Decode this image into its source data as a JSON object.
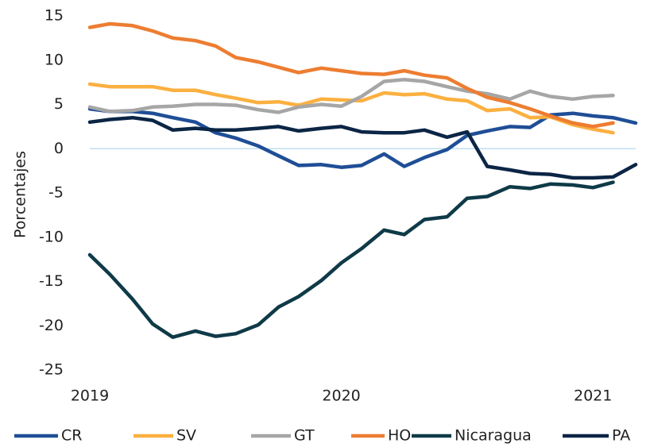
{
  "chart_data": {
    "type": "line",
    "ylabel": "Porcentajes",
    "x": [
      2019,
      2019.08,
      2019.17,
      2019.25,
      2019.33,
      2019.42,
      2019.5,
      2019.58,
      2019.67,
      2019.75,
      2019.83,
      2019.92,
      2020,
      2020.08,
      2020.17,
      2020.25,
      2020.33,
      2020.42,
      2020.5,
      2020.58,
      2020.67,
      2020.75,
      2020.83,
      2020.92,
      2021,
      2021.08,
      2021.17
    ],
    "xlim": [
      2019,
      2021.17
    ],
    "xticks": [
      2019,
      2020,
      2021
    ],
    "ylim": [
      -25,
      15
    ],
    "yticks": [
      -25,
      -20,
      -15,
      -10,
      -5,
      0,
      5,
      10,
      15
    ],
    "zero_line": true,
    "legend": "bottom",
    "series": [
      {
        "name": "CR",
        "color": "#1f4e96",
        "values": [
          4.5,
          4.2,
          4.2,
          4.0,
          3.5,
          3.0,
          1.8,
          1.2,
          0.3,
          -0.8,
          -1.9,
          -1.8,
          -2.1,
          -1.9,
          -0.6,
          -2.0,
          -1.0,
          -0.1,
          1.5,
          2.0,
          2.5,
          2.4,
          3.8,
          4.0,
          3.7,
          3.5,
          2.9
        ]
      },
      {
        "name": "SV",
        "color": "#fbb040",
        "values": [
          7.3,
          7.0,
          7.0,
          7.0,
          6.6,
          6.6,
          6.1,
          5.7,
          5.2,
          5.3,
          4.9,
          5.6,
          5.5,
          5.4,
          6.3,
          6.1,
          6.2,
          5.6,
          5.4,
          4.3,
          4.5,
          3.5,
          3.6,
          2.7,
          2.2,
          1.8,
          null
        ]
      },
      {
        "name": "GT",
        "color": "#a6a6a6",
        "values": [
          4.7,
          4.2,
          4.3,
          4.7,
          4.8,
          5.0,
          5.0,
          4.9,
          4.4,
          4.1,
          4.7,
          5.0,
          4.8,
          5.9,
          7.6,
          7.8,
          7.6,
          7.0,
          6.5,
          6.2,
          5.6,
          6.5,
          5.9,
          5.6,
          5.9,
          6.0,
          null
        ]
      },
      {
        "name": "HO",
        "color": "#ed7d31",
        "values": [
          13.7,
          14.1,
          13.9,
          13.3,
          12.5,
          12.2,
          11.6,
          10.3,
          9.8,
          9.2,
          8.6,
          9.1,
          8.8,
          8.5,
          8.4,
          8.8,
          8.3,
          8.0,
          6.8,
          5.8,
          5.2,
          4.5,
          3.7,
          2.9,
          2.5,
          2.9,
          null
        ]
      },
      {
        "name": "Nicaragua",
        "color": "#0f3a48",
        "values": [
          -12.0,
          -14.2,
          -17.0,
          -19.8,
          -21.3,
          -20.6,
          -21.2,
          -20.9,
          -19.9,
          -17.9,
          -16.7,
          -14.9,
          -12.9,
          -11.3,
          -9.2,
          -9.7,
          -8.0,
          -7.7,
          -5.6,
          -5.4,
          -4.3,
          -4.5,
          -4.0,
          -4.1,
          -4.4,
          -3.8,
          null
        ]
      },
      {
        "name": "PA",
        "color": "#0b2545",
        "values": [
          3.0,
          3.3,
          3.5,
          3.2,
          2.1,
          2.3,
          2.1,
          2.1,
          2.3,
          2.5,
          2.0,
          2.3,
          2.5,
          1.9,
          1.8,
          1.8,
          2.1,
          1.3,
          1.9,
          -2.0,
          -2.4,
          -2.8,
          -2.9,
          -3.3,
          -3.3,
          -3.2,
          -1.8
        ]
      }
    ]
  }
}
